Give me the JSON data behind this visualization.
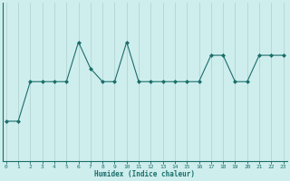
{
  "x": [
    0,
    1,
    2,
    3,
    4,
    5,
    6,
    7,
    8,
    9,
    10,
    11,
    12,
    13,
    14,
    15,
    16,
    17,
    18,
    19,
    20,
    21,
    22,
    23
  ],
  "y": [
    21,
    21,
    24,
    24,
    24,
    24,
    27,
    25,
    24,
    24,
    27,
    24,
    24,
    24,
    24,
    24,
    24,
    26,
    26,
    24,
    24,
    26,
    26,
    26
  ],
  "xlabel": "Humidex (Indice chaleur)",
  "bg_color": "#ceeeed",
  "line_color": "#1a6e6a",
  "marker_color": "#1a6e6a",
  "grid_color": "#b8d8d8",
  "axis_color": "#1a6e6a",
  "ylim": [
    18,
    30
  ],
  "xlim": [
    -0.3,
    23.3
  ],
  "xtick_labels": [
    "0",
    "1",
    "2",
    "3",
    "4",
    "5",
    "6",
    "7",
    "8",
    "9",
    "10",
    "11",
    "12",
    "13",
    "14",
    "15",
    "16",
    "17",
    "18",
    "19",
    "20",
    "21",
    "22",
    "23"
  ]
}
